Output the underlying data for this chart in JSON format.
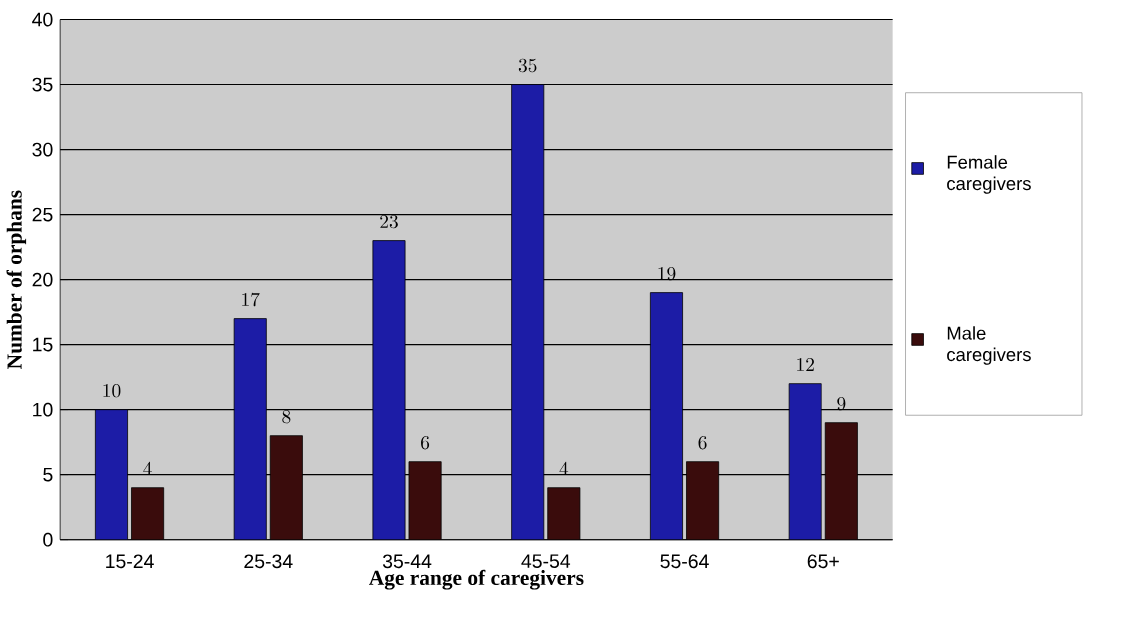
{
  "chart_data": {
    "type": "bar",
    "xlabel": "Age range of caregivers",
    "ylabel": "Number of orphans",
    "categories": [
      "15-24",
      "25-34",
      "35-44",
      "45-54",
      "55-64",
      "65+"
    ],
    "series": [
      {
        "name": "Female caregivers",
        "color": "#1c1ca6",
        "values": [
          10,
          17,
          23,
          35,
          19,
          12
        ]
      },
      {
        "name": "Male caregivers",
        "color": "#3a0c0c",
        "values": [
          4,
          8,
          6,
          4,
          6,
          9
        ]
      }
    ],
    "ylim": [
      0,
      40
    ],
    "yticks": [
      0,
      5,
      10,
      15,
      20,
      25,
      30,
      35,
      40
    ],
    "grid": "y",
    "legend": "right",
    "data_labels": true
  }
}
